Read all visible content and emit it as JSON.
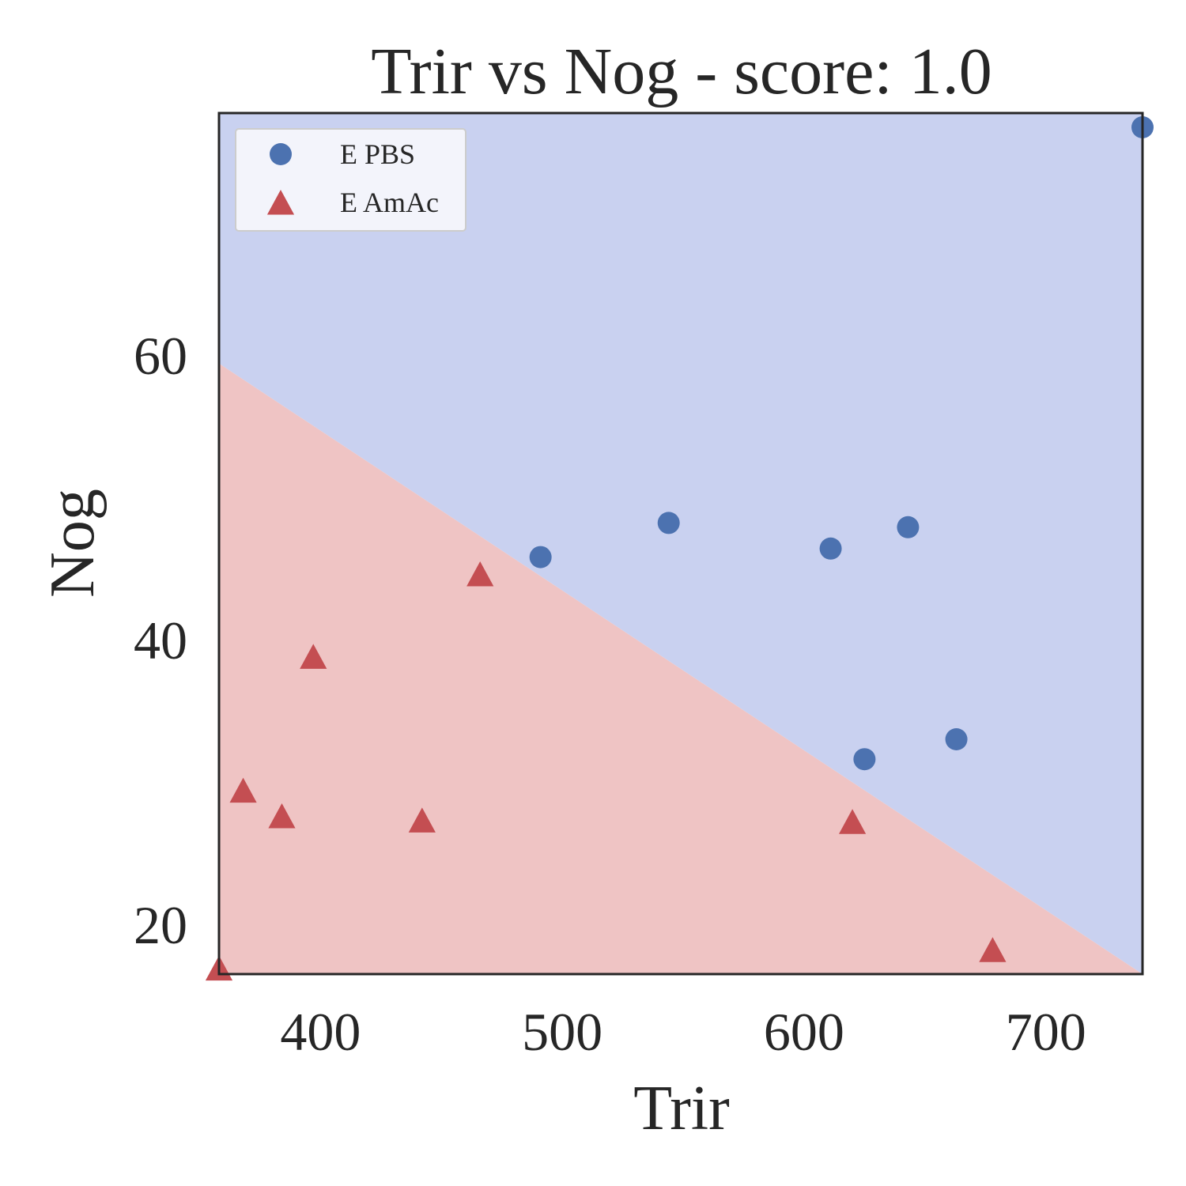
{
  "chart_data": {
    "type": "scatter",
    "title": "Trir vs Nog - score: 1.0",
    "xlabel": "Trir",
    "ylabel": "Nog",
    "xlim": [
      358,
      740
    ],
    "ylim": [
      16.5,
      77
    ],
    "xticks": [
      400,
      500,
      600,
      700
    ],
    "yticks": [
      20,
      40,
      60
    ],
    "xtick_labels": [
      "400",
      "500",
      "600",
      "700"
    ],
    "ytick_labels": [
      "20",
      "40",
      "60"
    ],
    "grid": false,
    "legend_position": "upper-left",
    "decision_boundary": {
      "line": [
        [
          358,
          59.4
        ],
        [
          740,
          16.5
        ]
      ],
      "upper_region_class": "E PBS",
      "lower_region_class": "E AmAc",
      "upper_color": "#c9d1f0",
      "lower_color": "#efc4c4"
    },
    "series": [
      {
        "name": "E PBS",
        "marker": "circle",
        "color": "#4c72b0",
        "points": [
          [
            491,
            45.8
          ],
          [
            544,
            48.2
          ],
          [
            611,
            46.4
          ],
          [
            643,
            47.9
          ],
          [
            625,
            31.6
          ],
          [
            663,
            33.0
          ],
          [
            740,
            76.0
          ]
        ]
      },
      {
        "name": "E AmAc",
        "marker": "triangle",
        "color": "#c44e52",
        "points": [
          [
            466,
            44.5
          ],
          [
            397,
            38.7
          ],
          [
            368,
            29.3
          ],
          [
            384,
            27.5
          ],
          [
            442,
            27.2
          ],
          [
            620,
            27.1
          ],
          [
            678,
            18.1
          ],
          [
            358,
            16.8
          ]
        ]
      }
    ]
  }
}
